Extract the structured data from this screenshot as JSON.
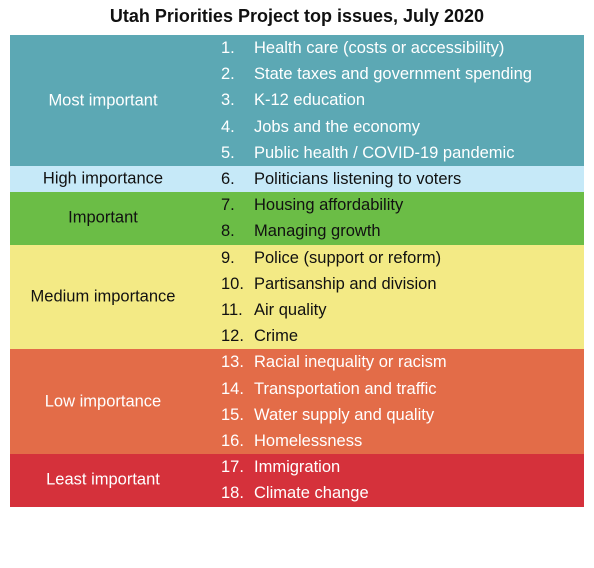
{
  "title": "Utah Priorities Project top issues, July 2020",
  "groups": [
    {
      "label": "Most important",
      "items": [
        {
          "number": "1.",
          "text": "Health care (costs or accessibility)"
        },
        {
          "number": "2.",
          "text": "State taxes and government spending"
        },
        {
          "number": "3.",
          "text": "K-12 education"
        },
        {
          "number": "4.",
          "text": "Jobs and the economy"
        },
        {
          "number": "5.",
          "text": "Public health / COVID-19 pandemic"
        }
      ]
    },
    {
      "label": "High importance",
      "items": [
        {
          "number": "6.",
          "text": "Politicians listening to voters"
        }
      ]
    },
    {
      "label": "Important",
      "items": [
        {
          "number": "7.",
          "text": "Housing affordability"
        },
        {
          "number": "8.",
          "text": "Managing growth"
        }
      ]
    },
    {
      "label": "Medium importance",
      "items": [
        {
          "number": "9.",
          "text": "Police (support or reform)"
        },
        {
          "number": "10.",
          "text": "Partisanship and division"
        },
        {
          "number": "11.",
          "text": "Air quality"
        },
        {
          "number": "12.",
          "text": "Crime"
        }
      ]
    },
    {
      "label": "Low importance",
      "items": [
        {
          "number": "13.",
          "text": "Racial inequality or racism"
        },
        {
          "number": "14.",
          "text": "Transportation and traffic"
        },
        {
          "number": "15.",
          "text": "Water supply and quality"
        },
        {
          "number": "16.",
          "text": "Homelessness"
        }
      ]
    },
    {
      "label": "Least important",
      "items": [
        {
          "number": "17.",
          "text": "Immigration"
        },
        {
          "number": "18.",
          "text": "Climate change"
        }
      ]
    }
  ]
}
